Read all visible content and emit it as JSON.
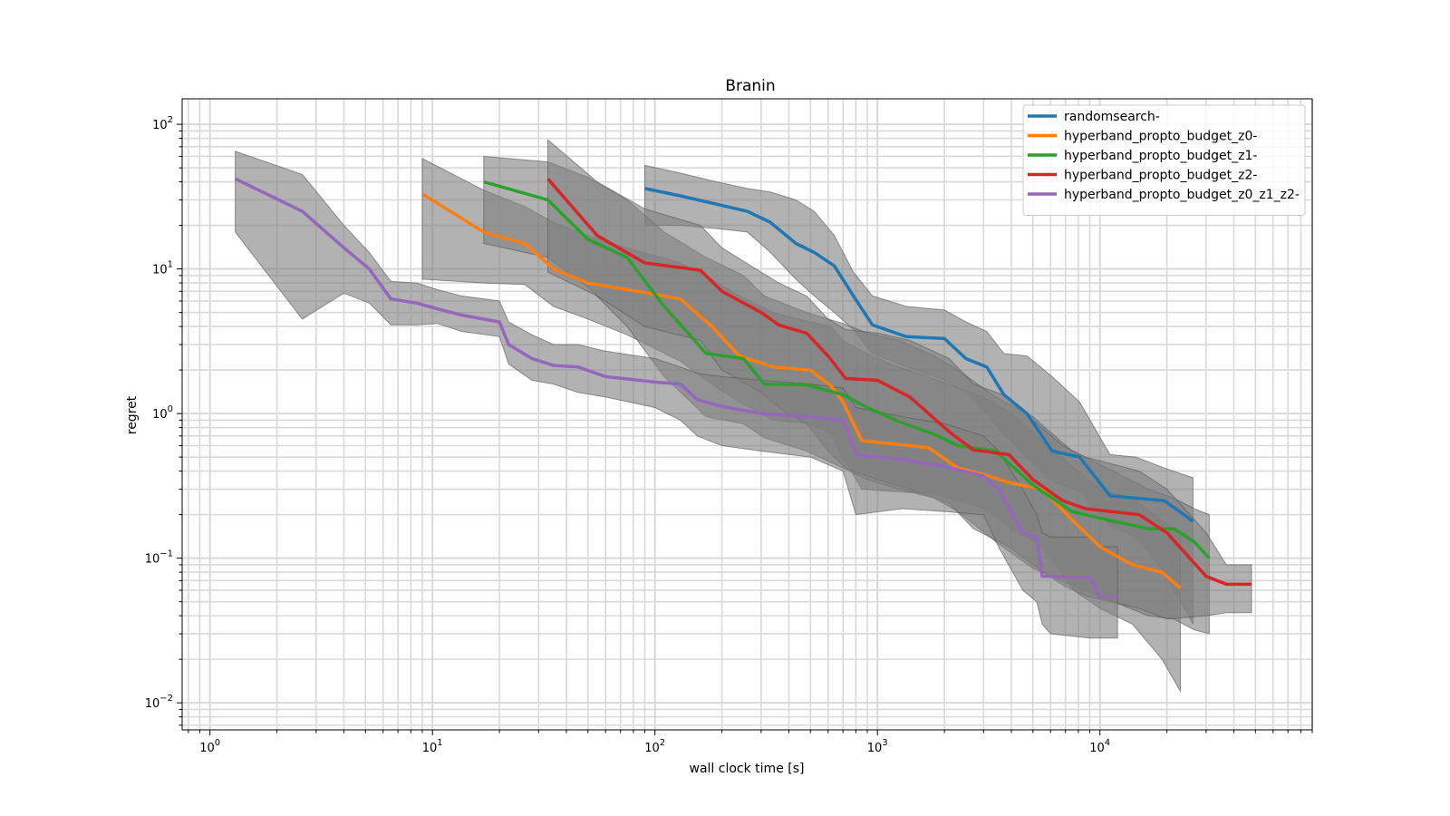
{
  "chart_data": {
    "type": "line",
    "title": "Branin",
    "xlabel": "wall clock time [s]",
    "ylabel": "regret",
    "xscale": "log",
    "yscale": "log",
    "xlim": [
      0.75,
      90000
    ],
    "ylim": [
      0.0065,
      150
    ],
    "grid": true,
    "legend_position": "top-right",
    "x_tick_labels": [
      {
        "value": 1,
        "base": "10",
        "exp": "0"
      },
      {
        "value": 10,
        "base": "10",
        "exp": "1"
      },
      {
        "value": 100,
        "base": "10",
        "exp": "2"
      },
      {
        "value": 1000,
        "base": "10",
        "exp": "3"
      },
      {
        "value": 10000,
        "base": "10",
        "exp": "4"
      }
    ],
    "y_tick_labels": [
      {
        "value": 0.01,
        "base": "10",
        "exp": "−2"
      },
      {
        "value": 0.1,
        "base": "10",
        "exp": "−1"
      },
      {
        "value": 1,
        "base": "10",
        "exp": "0"
      },
      {
        "value": 10,
        "base": "10",
        "exp": "1"
      },
      {
        "value": 100,
        "base": "10",
        "exp": "2"
      }
    ],
    "band_color": "#7f7f7f",
    "series": [
      {
        "name": "randomsearch-",
        "color": "#1f77b4",
        "x": [
          90,
          130,
          190,
          260,
          330,
          430,
          520,
          640,
          780,
          950,
          1350,
          2000,
          2500,
          3100,
          3700,
          4700,
          6100,
          8100,
          11100,
          14500,
          19500,
          26200
        ],
        "y": [
          36,
          32,
          28,
          25,
          21,
          15,
          13,
          10.5,
          6.5,
          4.1,
          3.4,
          3.3,
          2.4,
          2.1,
          1.35,
          1.0,
          0.55,
          0.5,
          0.27,
          0.26,
          0.25,
          0.18
        ],
        "upper": [
          52,
          46,
          40,
          36,
          34,
          30,
          25,
          17,
          9.5,
          6.5,
          5.5,
          5.2,
          4.3,
          3.7,
          2.6,
          2.5,
          1.8,
          1.2,
          0.52,
          0.5,
          0.42,
          0.36
        ],
        "lower": [
          20,
          20,
          19,
          18,
          13,
          8.5,
          6.5,
          5.0,
          3.8,
          2.6,
          2.1,
          1.7,
          1.4,
          1.0,
          0.72,
          0.5,
          0.34,
          0.29,
          0.17,
          0.14,
          0.08,
          0.035
        ]
      },
      {
        "name": "hyperband_propto_budget_z0-",
        "color": "#ff7f0e",
        "x": [
          9,
          17,
          26,
          35,
          50,
          75,
          130,
          180,
          240,
          340,
          500,
          620,
          700,
          850,
          1150,
          1700,
          2300,
          3000,
          4000,
          5500,
          7600,
          10000,
          14000,
          19000,
          23000
        ],
        "y": [
          33,
          18,
          15,
          10,
          8,
          7.2,
          6.2,
          4.0,
          2.5,
          2.1,
          2.0,
          1.55,
          1.2,
          0.65,
          0.62,
          0.58,
          0.42,
          0.38,
          0.33,
          0.3,
          0.18,
          0.12,
          0.09,
          0.08,
          0.062
        ],
        "upper": [
          58,
          35,
          27,
          21,
          17,
          14,
          11,
          8.5,
          6.5,
          5.0,
          4.3,
          4.0,
          3.2,
          2.7,
          2.2,
          1.8,
          1.5,
          1.3,
          1.0,
          0.65,
          0.42,
          0.3,
          0.26,
          0.18,
          0.15
        ],
        "lower": [
          8.5,
          8.0,
          7.8,
          5.5,
          4.5,
          3.5,
          2.3,
          1.6,
          1.2,
          0.9,
          0.85,
          0.72,
          0.5,
          0.3,
          0.29,
          0.28,
          0.25,
          0.22,
          0.16,
          0.12,
          0.06,
          0.045,
          0.035,
          0.02,
          0.012
        ]
      },
      {
        "name": "hyperband_propto_budget_z1-",
        "color": "#2ca02c",
        "x": [
          17,
          33,
          50,
          75,
          110,
          170,
          250,
          310,
          480,
          700,
          900,
          1250,
          1800,
          2300,
          3400,
          5000,
          7500,
          11500,
          16500,
          21500,
          26500,
          31000
        ],
        "y": [
          40,
          30,
          16,
          12,
          5.5,
          2.6,
          2.4,
          1.6,
          1.58,
          1.35,
          1.1,
          0.88,
          0.72,
          0.6,
          0.55,
          0.32,
          0.21,
          0.18,
          0.16,
          0.16,
          0.13,
          0.1
        ],
        "upper": [
          60,
          55,
          43,
          30,
          18,
          12,
          9,
          6.5,
          5.0,
          4.2,
          3.6,
          3.2,
          2.5,
          2.0,
          1.3,
          0.95,
          0.55,
          0.4,
          0.3,
          0.26,
          0.22,
          0.2
        ],
        "lower": [
          15,
          12,
          7.5,
          4.0,
          1.8,
          0.95,
          0.85,
          0.68,
          0.55,
          0.42,
          0.35,
          0.3,
          0.26,
          0.21,
          0.13,
          0.085,
          0.065,
          0.05,
          0.04,
          0.038,
          0.032,
          0.03
        ]
      },
      {
        "name": "hyperband_propto_budget_z2-",
        "color": "#d62728",
        "x": [
          33,
          55,
          90,
          160,
          200,
          300,
          360,
          480,
          600,
          720,
          1000,
          1400,
          2100,
          2700,
          3900,
          5000,
          6800,
          8600,
          15000,
          20000,
          30000,
          37000,
          48000
        ],
        "y": [
          42,
          17,
          11,
          9.8,
          7.0,
          5.0,
          4.1,
          3.6,
          2.5,
          1.75,
          1.7,
          1.3,
          0.75,
          0.56,
          0.52,
          0.35,
          0.25,
          0.22,
          0.2,
          0.15,
          0.075,
          0.066,
          0.066
        ],
        "upper": [
          78,
          40,
          26,
          20,
          14,
          9.5,
          8.0,
          6.5,
          4.5,
          3.8,
          3.6,
          3.2,
          2.4,
          1.6,
          1.3,
          0.9,
          0.6,
          0.5,
          0.4,
          0.3,
          0.15,
          0.09,
          0.09
        ],
        "lower": [
          9.5,
          6.5,
          4.0,
          3.2,
          2.0,
          1.4,
          1.1,
          0.85,
          0.55,
          0.42,
          0.35,
          0.3,
          0.24,
          0.16,
          0.12,
          0.09,
          0.065,
          0.055,
          0.045,
          0.038,
          0.04,
          0.042,
          0.042
        ]
      },
      {
        "name": "hyperband_propto_budget_z0_z1_z2-",
        "color": "#9467bd",
        "x": [
          1.3,
          2.6,
          4.0,
          5.2,
          6.5,
          8.5,
          10.5,
          13.5,
          20,
          22,
          28,
          35,
          45,
          60,
          100,
          130,
          155,
          200,
          300,
          500,
          700,
          800,
          1300,
          2000,
          3000,
          3500,
          4500,
          5200,
          5500,
          6000,
          9000,
          10000,
          12000
        ],
        "y": [
          42,
          25,
          14,
          10,
          6.2,
          5.8,
          5.3,
          4.8,
          4.3,
          3.0,
          2.4,
          2.15,
          2.1,
          1.8,
          1.65,
          1.6,
          1.25,
          1.12,
          1.0,
          0.95,
          0.9,
          0.52,
          0.48,
          0.43,
          0.37,
          0.3,
          0.15,
          0.14,
          0.075,
          0.075,
          0.074,
          0.054,
          0.054
        ],
        "upper": [
          65,
          45,
          20,
          13,
          8.2,
          8.0,
          7.2,
          6.5,
          6.0,
          4.3,
          3.5,
          3.0,
          3.0,
          2.7,
          2.4,
          2.1,
          1.9,
          1.8,
          1.7,
          1.6,
          1.5,
          1.1,
          0.95,
          0.85,
          0.7,
          0.55,
          0.3,
          0.2,
          0.15,
          0.14,
          0.14,
          0.12,
          0.12
        ],
        "lower": [
          18,
          4.5,
          6.8,
          5.8,
          4.1,
          4.1,
          4.2,
          3.7,
          3.4,
          2.2,
          1.7,
          1.6,
          1.4,
          1.3,
          1.1,
          0.9,
          0.7,
          0.6,
          0.55,
          0.5,
          0.4,
          0.2,
          0.22,
          0.21,
          0.2,
          0.12,
          0.06,
          0.05,
          0.035,
          0.03,
          0.028,
          0.028,
          0.028
        ]
      }
    ]
  }
}
